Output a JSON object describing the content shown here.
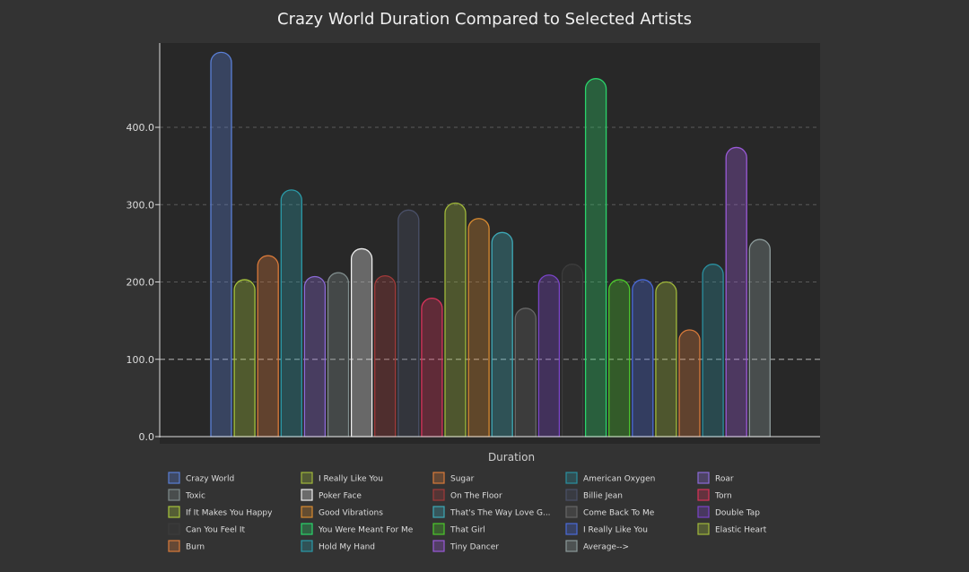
{
  "chart_data": {
    "type": "bar",
    "title": "Crazy World Duration Compared to Selected Artists",
    "xlabel": "Duration",
    "ylabel": "",
    "ylim": [
      0,
      500
    ],
    "yticks": [
      "0.0",
      "100.0",
      "200.0",
      "300.0",
      "400.0"
    ],
    "grid": true,
    "legend_position": "bottom",
    "series": [
      {
        "name": "Crazy World",
        "value": 497,
        "color": "#5a7fd6"
      },
      {
        "name": "If It Makes You Happy",
        "value": 203,
        "color": "#a6c43c"
      },
      {
        "name": "Burn",
        "value": 234,
        "color": "#d97a3a"
      },
      {
        "name": "Hold My Hand",
        "value": 319,
        "color": "#2a9aa8"
      },
      {
        "name": "Roar",
        "value": 207,
        "color": "#8c6ad8"
      },
      {
        "name": "Toxic",
        "value": 212,
        "color": "#7f8c8c"
      },
      {
        "name": "Poker Face",
        "value": 243,
        "color": "#f0f0f0"
      },
      {
        "name": "On The Floor",
        "value": 208,
        "color": "#a23a3a"
      },
      {
        "name": "Billie Jean",
        "value": 293,
        "color": "#4a5068"
      },
      {
        "name": "Torn",
        "value": 179,
        "color": "#d8335a"
      },
      {
        "name": "I Really Like You",
        "value": 302,
        "color": "#a0b83a"
      },
      {
        "name": "Good Vibrations",
        "value": 282,
        "color": "#d88a30"
      },
      {
        "name": "That's The Way Love G...",
        "value": 264,
        "color": "#3eaab8"
      },
      {
        "name": "Come Back To Me",
        "value": 166,
        "color": "#666666"
      },
      {
        "name": "Double Tap",
        "value": 209,
        "color": "#7a44c8"
      },
      {
        "name": "Can You Feel It",
        "value": 223,
        "color": "#3c3c3c"
      },
      {
        "name": "You Were Meant For Me",
        "value": 463,
        "color": "#2ad46a"
      },
      {
        "name": "That Girl",
        "value": 203,
        "color": "#4cc82c"
      },
      {
        "name": "I Really Like You",
        "value": 203,
        "color": "#4a6ad8"
      },
      {
        "name": "Elastic Heart",
        "value": 200,
        "color": "#a0b83a"
      },
      {
        "name": "Sugar",
        "value": 138,
        "color": "#d87a3a"
      },
      {
        "name": "American Oxygen",
        "value": 223,
        "color": "#2a90a0"
      },
      {
        "name": "Tiny Dancer",
        "value": 374,
        "color": "#9a5ad8"
      },
      {
        "name": "Average-->",
        "value": 255,
        "color": "#8c9a9a"
      }
    ],
    "average_line": 100,
    "legend_order": [
      "Crazy World",
      "I Really Like You",
      "Sugar",
      "American Oxygen",
      "Roar",
      "Toxic",
      "Poker Face",
      "On The Floor",
      "Billie Jean",
      "Torn",
      "If It Makes You Happy",
      "Good Vibrations",
      "That's The Way Love G...",
      "Come Back To Me",
      "Double Tap",
      "Can You Feel It",
      "You Were Meant For Me",
      "That Girl",
      "I Really Like You",
      "Elastic Heart",
      "Burn",
      "Hold My Hand",
      "Tiny Dancer",
      "Average-->"
    ],
    "legend_colors": [
      "#5a7fd6",
      "#a0b83a",
      "#d87a3a",
      "#2a90a0",
      "#8c6ad8",
      "#7f8c8c",
      "#f0f0f0",
      "#a23a3a",
      "#4a5068",
      "#d8335a",
      "#a6c43c",
      "#d88a30",
      "#3eaab8",
      "#666666",
      "#7a44c8",
      "#3c3c3c",
      "#2ad46a",
      "#4cc82c",
      "#4a6ad8",
      "#a0b83a",
      "#d97a3a",
      "#2a9aa8",
      "#9a5ad8",
      "#8c9a9a"
    ]
  }
}
